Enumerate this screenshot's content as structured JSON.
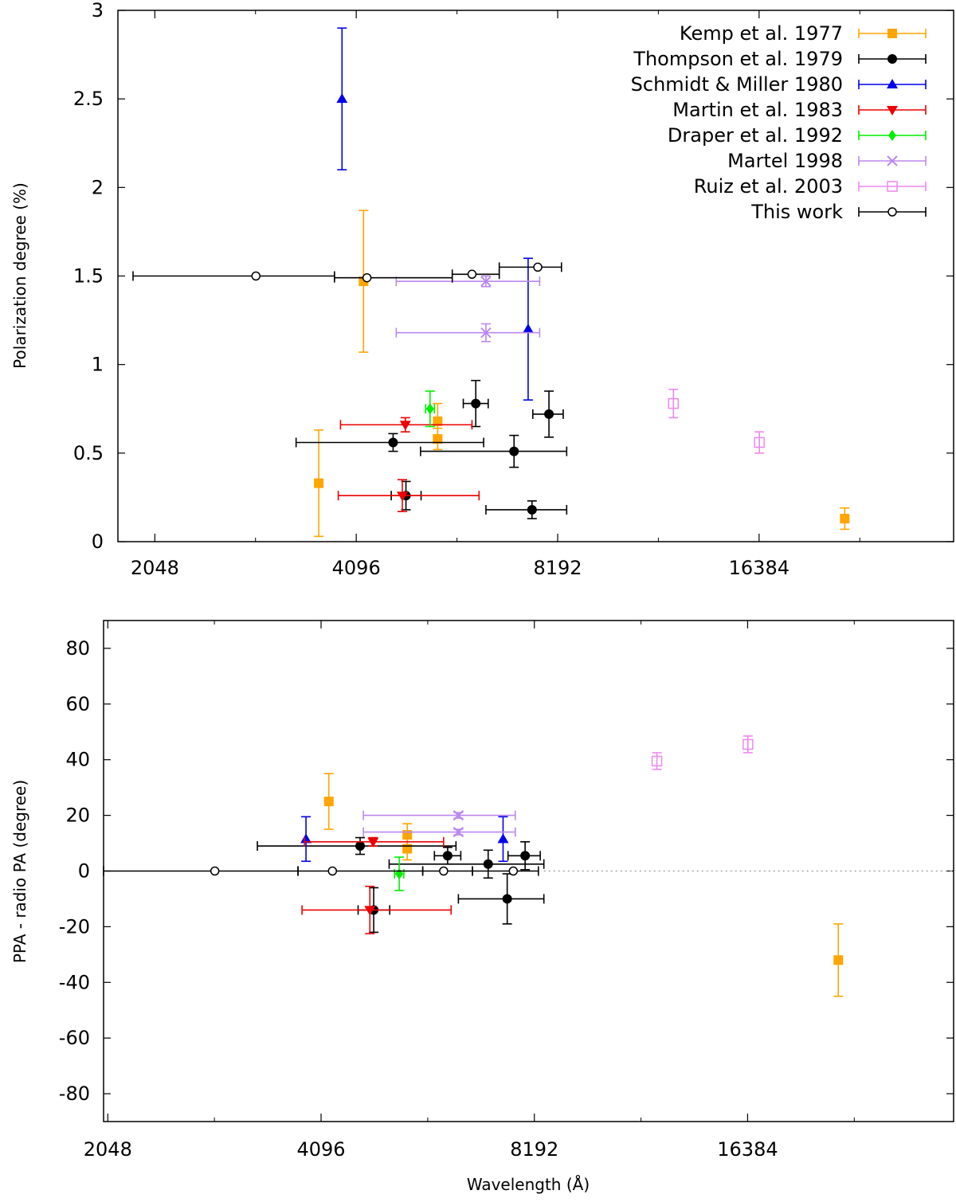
{
  "chart_data": [
    {
      "type": "scatter",
      "panel": "top",
      "title": "",
      "xlabel": "",
      "ylabel": "Polarization degree (%)",
      "xscale": "log2",
      "xlim": [
        1900,
        32000
      ],
      "ylim": [
        0,
        3
      ],
      "xticks": [
        2048,
        4096,
        8192,
        16384
      ],
      "xtick_labels": [
        "2048",
        "4096",
        "8192",
        "16384"
      ],
      "yticks": [
        0,
        0.5,
        1,
        1.5,
        2,
        2.5,
        3
      ],
      "ytick_labels": [
        "0",
        "0.5",
        "1",
        "1.5",
        "2",
        "2.5",
        "3"
      ],
      "grid": false,
      "legend_position": "top-right",
      "series": [
        {
          "name": "Kemp et al. 1977",
          "color": "#ffa500",
          "marker": "square-filled",
          "points": [
            {
              "x": 3600,
              "y": 0.33,
              "yerr": 0.3
            },
            {
              "x": 4200,
              "y": 1.47,
              "yerr": 0.4
            },
            {
              "x": 5420,
              "y": 0.68,
              "yerr": 0.1
            },
            {
              "x": 5420,
              "y": 0.58,
              "yerr": 0.06
            },
            {
              "x": 22000,
              "y": 0.13,
              "yerr": 0.06
            }
          ]
        },
        {
          "name": "Thompson et al. 1979",
          "color": "#000000",
          "marker": "circle-filled",
          "points": [
            {
              "x": 4650,
              "y": 0.56,
              "xerr": [
                3330,
                6350
              ],
              "yerr": 0.05
            },
            {
              "x": 4860,
              "y": 0.26,
              "xerr": [
                4620,
                5120
              ],
              "yerr": 0.08
            },
            {
              "x": 6180,
              "y": 0.78,
              "xerr": [
                5920,
                6450
              ],
              "yerr": 0.13
            },
            {
              "x": 7050,
              "y": 0.51,
              "xerr": [
                5110,
                8450
              ],
              "yerr": 0.09
            },
            {
              "x": 7500,
              "y": 0.18,
              "xerr": [
                6400,
                8450
              ],
              "yerr": 0.05
            },
            {
              "x": 7950,
              "y": 0.72,
              "xerr": [
                7520,
                8350
              ],
              "yerr": 0.13
            }
          ]
        },
        {
          "name": "Schmidt & Miller 1980",
          "color": "#0000ee",
          "marker": "triangle-up",
          "points": [
            {
              "x": 3900,
              "y": 2.5,
              "yerr": 0.4
            },
            {
              "x": 7400,
              "y": 1.2,
              "yerr": 0.4
            }
          ]
        },
        {
          "name": "Martin et al. 1983",
          "color": "#ee0000",
          "marker": "triangle-down",
          "points": [
            {
              "x": 4850,
              "y": 0.66,
              "xerr": [
                3880,
                6100
              ],
              "yerr": 0.04
            },
            {
              "x": 4800,
              "y": 0.26,
              "xerr": [
                3850,
                6250
              ],
              "yerr": 0.09
            }
          ]
        },
        {
          "name": "Draper et al. 1992",
          "color": "#00ee00",
          "marker": "diamond",
          "points": [
            {
              "x": 5280,
              "y": 0.75,
              "xerr": [
                5200,
                5360
              ],
              "yerr": 0.1
            }
          ]
        },
        {
          "name": "Martel 1998",
          "color": "#bb88ee",
          "marker": "cross",
          "points": [
            {
              "x": 6400,
              "y": 1.47,
              "xerr": [
                4700,
                7700
              ],
              "yerr": 0.03
            },
            {
              "x": 6400,
              "y": 1.18,
              "xerr": [
                4700,
                7700
              ],
              "yerr": 0.05
            }
          ]
        },
        {
          "name": "Ruiz et al. 2003",
          "color": "#ee88ee",
          "marker": "square-open",
          "points": [
            {
              "x": 12200,
              "y": 0.78,
              "yerr": 0.08
            },
            {
              "x": 16400,
              "y": 0.56,
              "yerr": 0.06
            }
          ]
        },
        {
          "name": "This work",
          "color": "#000000",
          "marker": "circle-open",
          "points": [
            {
              "x": 2900,
              "y": 1.5,
              "xerr": [
                1900,
                3800
              ]
            },
            {
              "x": 4250,
              "y": 1.49,
              "xerr": [
                3800,
                5700
              ]
            },
            {
              "x": 6100,
              "y": 1.51,
              "xerr": [
                5700,
                6700
              ]
            },
            {
              "x": 7650,
              "y": 1.55,
              "xerr": [
                6700,
                8300
              ]
            }
          ]
        }
      ]
    },
    {
      "type": "scatter",
      "panel": "bottom",
      "title": "",
      "xlabel": "Wavelength (Å)",
      "ylabel": "PPA - radio PA (degree)",
      "xscale": "log2",
      "xlim": [
        2020,
        32000
      ],
      "ylim": [
        -90,
        90
      ],
      "xticks": [
        2048,
        4096,
        8192,
        16384
      ],
      "xtick_labels": [
        "2048",
        "4096",
        "8192",
        "16384"
      ],
      "yticks": [
        -80,
        -60,
        -40,
        -20,
        0,
        20,
        40,
        60,
        80
      ],
      "ytick_labels": [
        "-80",
        "-60",
        "-40",
        "-20",
        "0",
        "20",
        "40",
        "60",
        "80"
      ],
      "grid": false,
      "reference_line": {
        "y": 0,
        "from_x": 8450,
        "style": "dotted"
      },
      "series": [
        {
          "name": "Kemp et al. 1977",
          "color": "#ffa500",
          "marker": "square-filled",
          "points": [
            {
              "x": 4200,
              "y": 25,
              "yerr": 10
            },
            {
              "x": 5420,
              "y": 13,
              "yerr": 4
            },
            {
              "x": 5420,
              "y": 8,
              "yerr": 4
            },
            {
              "x": 22000,
              "y": -32,
              "yerr": 13
            }
          ]
        },
        {
          "name": "Thompson et al. 1979",
          "color": "#000000",
          "marker": "circle-filled",
          "points": [
            {
              "x": 4650,
              "y": 9,
              "xerr": [
                3330,
                6350
              ],
              "yerr": 3
            },
            {
              "x": 4860,
              "y": -14,
              "xerr": [
                4620,
                5120
              ],
              "yerr": 8
            },
            {
              "x": 6180,
              "y": 5.5,
              "xerr": [
                5920,
                6450
              ],
              "yerr": 3
            },
            {
              "x": 7050,
              "y": 2.5,
              "xerr": [
                5110,
                8450
              ],
              "yerr": 5
            },
            {
              "x": 7500,
              "y": -10,
              "xerr": [
                6400,
                8450
              ],
              "yerr": 9
            },
            {
              "x": 7950,
              "y": 5.5,
              "xerr": [
                7520,
                8350
              ],
              "yerr": 5
            }
          ]
        },
        {
          "name": "Schmidt & Miller 1980",
          "color": "#0000ee",
          "marker": "triangle-up",
          "points": [
            {
              "x": 3900,
              "y": 11.5,
              "yerr": 8
            },
            {
              "x": 7400,
              "y": 11.5,
              "yerr": 8
            }
          ]
        },
        {
          "name": "Martin et al. 1983",
          "color": "#ee0000",
          "marker": "triangle-down",
          "points": [
            {
              "x": 4850,
              "y": 10.5,
              "xerr": [
                3880,
                6100
              ],
              "yerr": 1.5
            },
            {
              "x": 4800,
              "y": -14,
              "xerr": [
                3850,
                6250
              ],
              "yerr": 8.5
            }
          ]
        },
        {
          "name": "Draper et al. 1992",
          "color": "#00ee00",
          "marker": "diamond",
          "points": [
            {
              "x": 5280,
              "y": -1,
              "xerr": [
                5200,
                5360
              ],
              "yerr": 6
            }
          ]
        },
        {
          "name": "Martel 1998",
          "color": "#bb88ee",
          "marker": "cross",
          "points": [
            {
              "x": 6400,
              "y": 20,
              "xerr": [
                4700,
                7700
              ],
              "yerr": 1
            },
            {
              "x": 6400,
              "y": 14,
              "xerr": [
                4700,
                7700
              ],
              "yerr": 1
            }
          ]
        },
        {
          "name": "Ruiz et al. 2003",
          "color": "#ee88ee",
          "marker": "square-open",
          "points": [
            {
              "x": 12200,
              "y": 39.5,
              "yerr": 3
            },
            {
              "x": 16400,
              "y": 45.5,
              "yerr": 3
            }
          ]
        },
        {
          "name": "This work",
          "color": "#000000",
          "marker": "circle-open",
          "points": [
            {
              "x": 2900,
              "y": 0,
              "xerr": [
                2020,
                3800
              ]
            },
            {
              "x": 4250,
              "y": 0,
              "xerr": [
                3800,
                5700
              ]
            },
            {
              "x": 6100,
              "y": 0,
              "xerr": [
                5700,
                6700
              ]
            },
            {
              "x": 7650,
              "y": 0,
              "xerr": [
                6700,
                8300
              ]
            }
          ]
        }
      ]
    }
  ]
}
